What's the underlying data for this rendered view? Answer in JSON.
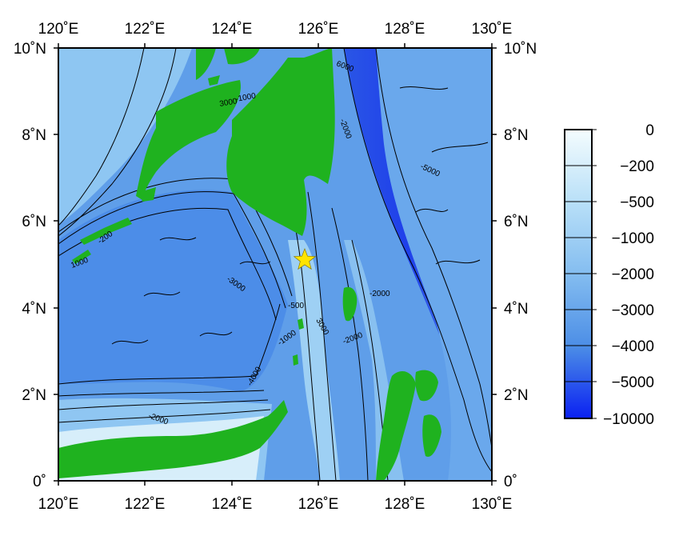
{
  "map": {
    "lon_labels": [
      "120˚E",
      "122˚E",
      "124˚E",
      "126˚E",
      "128˚E",
      "130˚E"
    ],
    "lat_labels": [
      "0˚",
      "2˚N",
      "4˚N",
      "6˚N",
      "8˚N",
      "10˚N"
    ],
    "marker_icon": "star-icon",
    "marker_color": "#ffe400",
    "land_color": "#1fb21f",
    "contour_labels": [
      "6000",
      "-2000",
      "-5000",
      "3000",
      "-1000",
      "-200",
      "1000",
      "-3000",
      "-500",
      "3000",
      "-1000",
      "-2000",
      "-2000",
      "-4000",
      "-2000"
    ]
  },
  "colorbar": {
    "labels": [
      "0",
      "−200",
      "−500",
      "−1000",
      "−2000",
      "−3000",
      "−4000",
      "−5000",
      "−10000"
    ],
    "colors": [
      "#f2fbfd",
      "#d9f1fb",
      "#c1e6f9",
      "#a9d8f7",
      "#8dc5f2",
      "#6fb0ec",
      "#4e96e6",
      "#2f74e2",
      "#0d2bf0"
    ]
  }
}
